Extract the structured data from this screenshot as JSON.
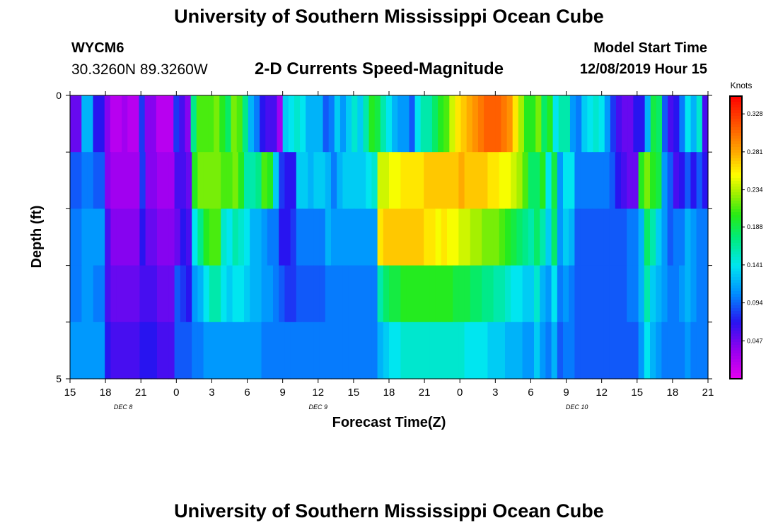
{
  "header": {
    "title": "University of Southern Mississippi Ocean Cube",
    "station_id": "WYCM6",
    "station_coords": "30.3260N 89.3260W",
    "plot_title": "2-D Currents Speed-Magnitude",
    "model_start_label": "Model Start Time",
    "model_start_value": "12/08/2019 Hour 15"
  },
  "footer": {
    "title": "University of Southern Mississippi Ocean Cube"
  },
  "chart_data": {
    "type": "heatmap",
    "xlabel": "Forecast Time(Z)",
    "ylabel": "Depth (ft)",
    "x_tick_labels": [
      "15",
      "18",
      "21",
      "0",
      "3",
      "6",
      "9",
      "12",
      "15",
      "18",
      "21",
      "0",
      "3",
      "6",
      "9",
      "12",
      "15",
      "18",
      "21"
    ],
    "x_date_labels": [
      {
        "label": "DEC 8",
        "after_tick": 1.5
      },
      {
        "label": "DEC 9",
        "after_tick": 7
      },
      {
        "label": "DEC 10",
        "after_tick": 14.3
      }
    ],
    "ylim": [
      0,
      5
    ],
    "y_tick_labels": [
      "0",
      "5"
    ],
    "depth_layers": 5,
    "colorbar": {
      "label": "Knots",
      "range": [
        0.0,
        0.35
      ],
      "tick_values": [
        "0.047",
        "0.094",
        "0.141",
        "0.188",
        "0.234",
        "0.281",
        "0.328"
      ]
    },
    "time_steps": 54,
    "layer_profiles": [
      [
        0.05,
        0.05,
        0.12,
        0.12,
        0.07,
        0.07,
        0.04,
        0.02,
        0.02,
        0.03,
        0.02,
        0.02,
        0.08,
        0.04,
        0.04,
        0.02,
        0.02,
        0.02,
        0.08,
        0.06,
        0.04,
        0.17,
        0.21,
        0.21,
        0.21,
        0.22,
        0.2,
        0.18,
        0.22,
        0.21,
        0.17,
        0.12,
        0.1,
        0.07,
        0.06,
        0.06,
        0.03,
        0.13,
        0.14,
        0.15,
        0.14,
        0.12,
        0.12,
        0.12,
        0.09,
        0.1,
        0.13,
        0.11,
        0.13,
        0.15,
        0.13,
        0.16,
        0.2,
        0.19,
        0.16,
        0.14,
        0.12,
        0.11,
        0.11,
        0.09,
        0.14,
        0.16,
        0.16,
        0.18,
        0.2,
        0.21,
        0.24,
        0.26,
        0.27,
        0.28,
        0.29,
        0.3,
        0.31,
        0.31,
        0.31,
        0.3,
        0.29,
        0.26,
        0.23,
        0.2,
        0.2,
        0.22,
        0.18,
        0.2,
        0.14,
        0.16,
        0.16,
        0.11,
        0.1,
        0.13,
        0.14,
        0.15,
        0.14,
        0.11,
        0.08,
        0.06,
        0.05,
        0.05,
        0.07,
        0.07,
        0.12,
        0.19,
        0.18,
        0.09,
        0.06,
        0.07,
        0.1,
        0.14,
        0.12,
        0.15,
        0.06
      ],
      [
        0.09,
        0.09,
        0.1,
        0.1,
        0.09,
        0.09,
        0.04,
        0.03,
        0.03,
        0.03,
        0.03,
        0.03,
        0.08,
        0.04,
        0.04,
        0.03,
        0.03,
        0.03,
        0.06,
        0.06,
        0.05,
        0.2,
        0.22,
        0.22,
        0.22,
        0.22,
        0.21,
        0.21,
        0.22,
        0.2,
        0.16,
        0.16,
        0.17,
        0.21,
        0.2,
        0.13,
        0.08,
        0.07,
        0.07,
        0.13,
        0.13,
        0.12,
        0.13,
        0.13,
        0.12,
        0.1,
        0.12,
        0.13,
        0.13,
        0.13,
        0.13,
        0.14,
        0.15,
        0.24,
        0.24,
        0.25,
        0.25,
        0.26,
        0.26,
        0.26,
        0.26,
        0.27,
        0.27,
        0.27,
        0.27,
        0.27,
        0.27,
        0.28,
        0.27,
        0.27,
        0.27,
        0.27,
        0.26,
        0.26,
        0.25,
        0.25,
        0.24,
        0.23,
        0.21,
        0.18,
        0.18,
        0.2,
        0.14,
        0.19,
        0.11,
        0.14,
        0.14,
        0.1,
        0.1,
        0.1,
        0.1,
        0.1,
        0.1,
        0.09,
        0.07,
        0.06,
        0.05,
        0.05,
        0.2,
        0.22,
        0.2,
        0.19,
        0.11,
        0.09,
        0.06,
        0.07,
        0.09,
        0.07,
        0.09,
        0.07
      ],
      [
        0.1,
        0.1,
        0.11,
        0.11,
        0.11,
        0.11,
        0.06,
        0.04,
        0.04,
        0.04,
        0.04,
        0.04,
        0.07,
        0.05,
        0.05,
        0.04,
        0.04,
        0.04,
        0.05,
        0.07,
        0.06,
        0.14,
        0.17,
        0.2,
        0.21,
        0.21,
        0.15,
        0.14,
        0.16,
        0.15,
        0.14,
        0.12,
        0.12,
        0.11,
        0.1,
        0.1,
        0.07,
        0.07,
        0.08,
        0.1,
        0.1,
        0.1,
        0.1,
        0.1,
        0.12,
        0.11,
        0.11,
        0.11,
        0.11,
        0.11,
        0.11,
        0.11,
        0.11,
        0.26,
        0.27,
        0.27,
        0.27,
        0.27,
        0.27,
        0.27,
        0.27,
        0.26,
        0.26,
        0.25,
        0.26,
        0.25,
        0.25,
        0.24,
        0.24,
        0.23,
        0.23,
        0.22,
        0.22,
        0.22,
        0.21,
        0.2,
        0.19,
        0.18,
        0.17,
        0.16,
        0.18,
        0.16,
        0.13,
        0.18,
        0.11,
        0.13,
        0.12,
        0.09,
        0.09,
        0.09,
        0.09,
        0.09,
        0.09,
        0.09,
        0.09,
        0.09,
        0.1,
        0.1,
        0.12,
        0.18,
        0.16,
        0.13,
        0.11,
        0.09,
        0.1,
        0.1,
        0.12,
        0.11,
        0.1,
        0.1
      ],
      [
        0.1,
        0.1,
        0.11,
        0.11,
        0.1,
        0.1,
        0.06,
        0.05,
        0.05,
        0.05,
        0.05,
        0.05,
        0.06,
        0.06,
        0.06,
        0.05,
        0.05,
        0.05,
        0.09,
        0.08,
        0.07,
        0.11,
        0.12,
        0.14,
        0.16,
        0.16,
        0.14,
        0.13,
        0.14,
        0.14,
        0.13,
        0.12,
        0.12,
        0.11,
        0.11,
        0.1,
        0.09,
        0.08,
        0.08,
        0.09,
        0.09,
        0.09,
        0.09,
        0.09,
        0.1,
        0.1,
        0.1,
        0.1,
        0.1,
        0.1,
        0.1,
        0.1,
        0.1,
        0.16,
        0.18,
        0.19,
        0.19,
        0.2,
        0.2,
        0.2,
        0.2,
        0.2,
        0.2,
        0.2,
        0.2,
        0.2,
        0.19,
        0.19,
        0.19,
        0.18,
        0.18,
        0.17,
        0.17,
        0.16,
        0.16,
        0.15,
        0.14,
        0.14,
        0.13,
        0.13,
        0.15,
        0.12,
        0.11,
        0.14,
        0.1,
        0.11,
        0.1,
        0.09,
        0.09,
        0.09,
        0.09,
        0.09,
        0.09,
        0.09,
        0.09,
        0.09,
        0.1,
        0.1,
        0.12,
        0.16,
        0.13,
        0.12,
        0.11,
        0.1,
        0.1,
        0.11,
        0.12,
        0.11,
        0.1,
        0.1
      ],
      [
        0.11,
        0.11,
        0.11,
        0.11,
        0.11,
        0.11,
        0.07,
        0.06,
        0.06,
        0.06,
        0.06,
        0.06,
        0.07,
        0.07,
        0.07,
        0.06,
        0.06,
        0.06,
        0.09,
        0.09,
        0.09,
        0.1,
        0.1,
        0.11,
        0.11,
        0.11,
        0.11,
        0.11,
        0.11,
        0.11,
        0.11,
        0.11,
        0.11,
        0.1,
        0.1,
        0.1,
        0.1,
        0.1,
        0.1,
        0.1,
        0.1,
        0.1,
        0.1,
        0.1,
        0.1,
        0.1,
        0.1,
        0.1,
        0.1,
        0.1,
        0.1,
        0.1,
        0.1,
        0.12,
        0.13,
        0.14,
        0.14,
        0.15,
        0.15,
        0.15,
        0.15,
        0.15,
        0.15,
        0.15,
        0.15,
        0.15,
        0.15,
        0.15,
        0.14,
        0.14,
        0.14,
        0.14,
        0.13,
        0.13,
        0.13,
        0.12,
        0.12,
        0.12,
        0.11,
        0.11,
        0.13,
        0.11,
        0.1,
        0.12,
        0.09,
        0.1,
        0.1,
        0.09,
        0.09,
        0.09,
        0.09,
        0.09,
        0.09,
        0.09,
        0.09,
        0.09,
        0.09,
        0.09,
        0.11,
        0.14,
        0.12,
        0.11,
        0.1,
        0.1,
        0.1,
        0.1,
        0.11,
        0.1,
        0.1,
        0.1
      ]
    ]
  }
}
